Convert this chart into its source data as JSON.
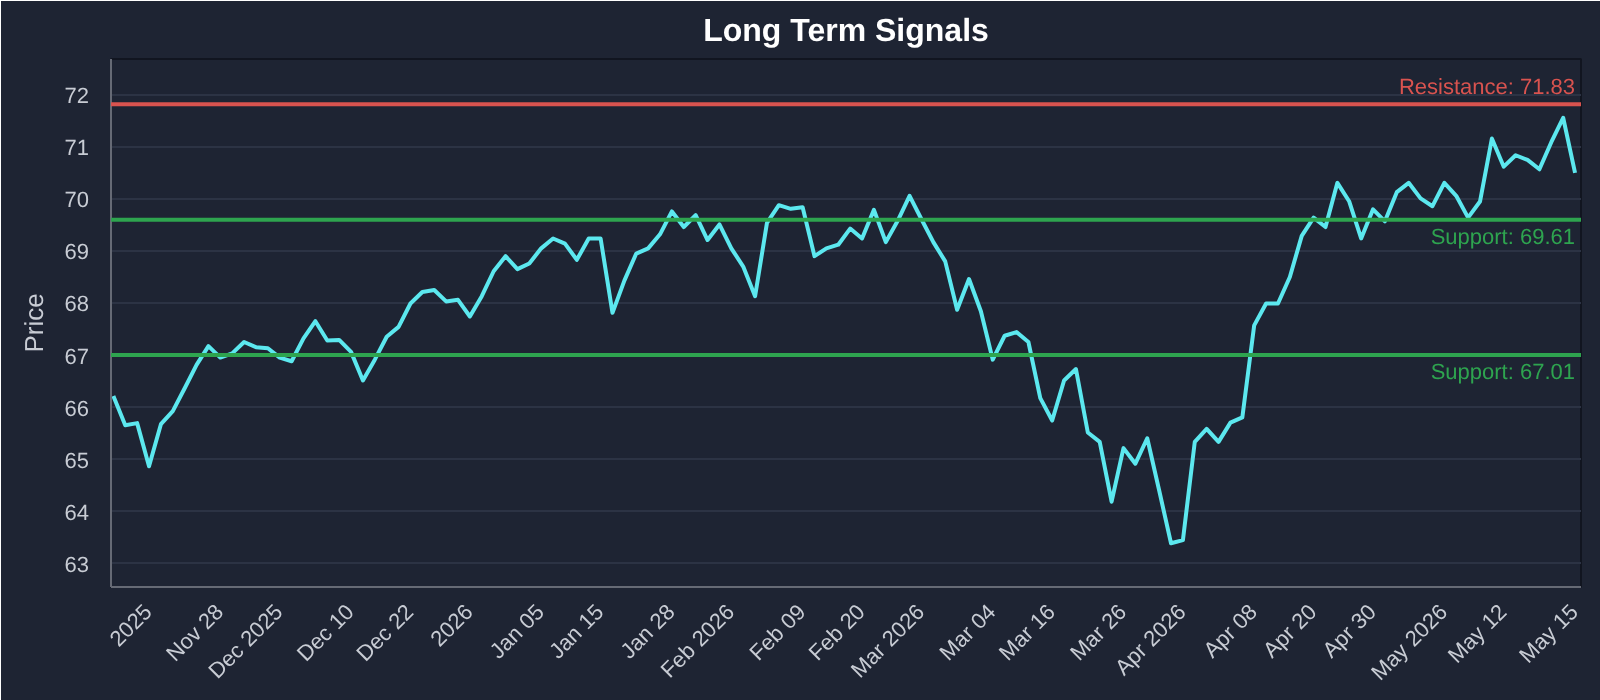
{
  "chart_data": {
    "type": "line",
    "title": "Long Term Signals",
    "ylabel": "Price",
    "categories": [
      null,
      null,
      null,
      "2025",
      null,
      null,
      null,
      null,
      null,
      "Nov 28",
      null,
      null,
      null,
      null,
      "Dec 2025",
      null,
      null,
      null,
      null,
      null,
      "Dec 10",
      null,
      null,
      null,
      null,
      "Dec 22",
      null,
      null,
      null,
      null,
      "2026",
      null,
      null,
      null,
      null,
      null,
      "Jan 05",
      null,
      null,
      null,
      null,
      "Jan 15",
      null,
      null,
      null,
      null,
      null,
      "Jan 28",
      null,
      null,
      null,
      null,
      "Feb 2026",
      null,
      null,
      null,
      null,
      null,
      "Feb 09",
      null,
      null,
      null,
      null,
      "Feb 20",
      null,
      null,
      null,
      null,
      "Mar 2026",
      null,
      null,
      null,
      null,
      null,
      "Mar 04",
      null,
      null,
      null,
      null,
      "Mar 16",
      null,
      null,
      null,
      null,
      null,
      "Mar 26",
      null,
      null,
      null,
      null,
      "Apr 2026",
      null,
      null,
      null,
      null,
      null,
      "Apr 08",
      null,
      null,
      null,
      null,
      "Apr 20",
      null,
      null,
      null,
      null,
      "Apr 30",
      null,
      null,
      null,
      null,
      null,
      "May 2026",
      null,
      null,
      null,
      null,
      "May 12",
      null,
      null,
      null,
      null,
      null,
      "May 15"
    ],
    "series": [
      {
        "color": "#5ce8ef",
        "values": [
          66.22,
          65.66,
          65.7,
          64.87,
          65.68,
          65.93,
          66.37,
          66.82,
          67.18,
          66.96,
          67.04,
          67.26,
          67.16,
          67.14,
          66.96,
          66.89,
          67.33,
          67.66,
          67.29,
          67.3,
          67.07,
          66.52,
          66.92,
          67.36,
          67.55,
          68.0,
          68.22,
          68.26,
          68.04,
          68.07,
          67.75,
          68.14,
          68.62,
          68.91,
          68.66,
          68.77,
          69.06,
          69.25,
          69.15,
          68.84,
          69.25,
          69.25,
          67.82,
          68.44,
          68.96,
          69.06,
          69.33,
          69.77,
          69.47,
          69.7,
          69.22,
          69.52,
          69.06,
          68.71,
          68.14,
          69.55,
          69.89,
          69.82,
          69.85,
          68.91,
          69.06,
          69.13,
          69.44,
          69.25,
          69.8,
          69.18,
          69.59,
          70.07,
          69.62,
          69.18,
          68.81,
          67.88,
          68.47,
          67.85,
          66.92,
          67.38,
          67.45,
          67.26,
          66.18,
          65.75,
          66.52,
          66.74,
          65.52,
          65.34,
          64.19,
          65.22,
          64.92,
          65.41,
          64.41,
          63.39,
          63.45,
          65.34,
          65.59,
          65.34,
          65.71,
          65.81,
          67.58,
          68.0,
          68.0,
          68.51,
          69.3,
          69.65,
          69.47,
          70.32,
          69.96,
          69.25,
          69.81,
          69.58,
          70.14,
          70.32,
          70.02,
          69.87,
          70.32,
          70.07,
          69.65,
          69.96,
          71.17,
          70.63,
          70.85,
          70.76,
          70.58,
          71.1,
          71.57,
          70.51
        ]
      }
    ],
    "ylim": [
      62.55,
      72.7
    ],
    "yticks": [
      63,
      64,
      65,
      66,
      67,
      68,
      69,
      70,
      71,
      72
    ],
    "ref_lines": [
      {
        "axis": "y",
        "value": 71.83,
        "label": "Resistance: 71.83",
        "color": "#d9534f"
      },
      {
        "axis": "y",
        "value": 69.61,
        "label": "Support: 69.61",
        "color": "#2ea44f"
      },
      {
        "axis": "y",
        "value": 67.01,
        "label": "Support: 67.01",
        "color": "#2ea44f"
      }
    ],
    "grid": "y",
    "marker": "none",
    "line_style": "solid"
  }
}
